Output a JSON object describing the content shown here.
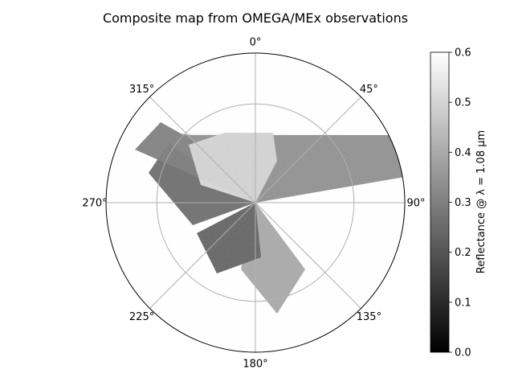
{
  "chart_data": {
    "type": "heatmap",
    "projection": "polar",
    "title": "Composite map from OMEGA/MEx observations",
    "angular_ticks": [
      "0°",
      "45°",
      "90°",
      "135°",
      "180°",
      "225°",
      "270°",
      "315°"
    ],
    "angular_tick_values": [
      0,
      45,
      90,
      135,
      180,
      225,
      270,
      315
    ],
    "theta_zero_location": "top",
    "theta_direction": "clockwise",
    "radial_gridlines": 1,
    "grid": true,
    "colormap": "gray",
    "colorbar": {
      "label": "Reflectance @ λ = 1.08 µm",
      "vmin": 0.0,
      "vmax": 0.6,
      "ticks": [
        "0.0",
        "0.1",
        "0.2",
        "0.3",
        "0.4",
        "0.5",
        "0.6"
      ],
      "tick_values": [
        0.0,
        0.1,
        0.2,
        0.3,
        0.4,
        0.5,
        0.6
      ]
    },
    "observation_swaths": [
      {
        "theta_start": 80,
        "theta_end": 100,
        "r_max": 1.0,
        "reflectance_mean": 0.3
      },
      {
        "theta_start": 290,
        "theta_end": 320,
        "r_max": 1.0,
        "reflectance_mean": 0.3
      },
      {
        "theta_start": 145,
        "theta_end": 175,
        "r_max": 1.0,
        "reflectance_mean": 0.32
      },
      {
        "theta_start": 190,
        "theta_end": 230,
        "r_max": 0.6,
        "reflectance_mean": 0.22
      }
    ],
    "bright_region": {
      "theta_start": 240,
      "theta_end": 30,
      "r_max": 0.45,
      "reflectance_mean": 0.5
    }
  }
}
